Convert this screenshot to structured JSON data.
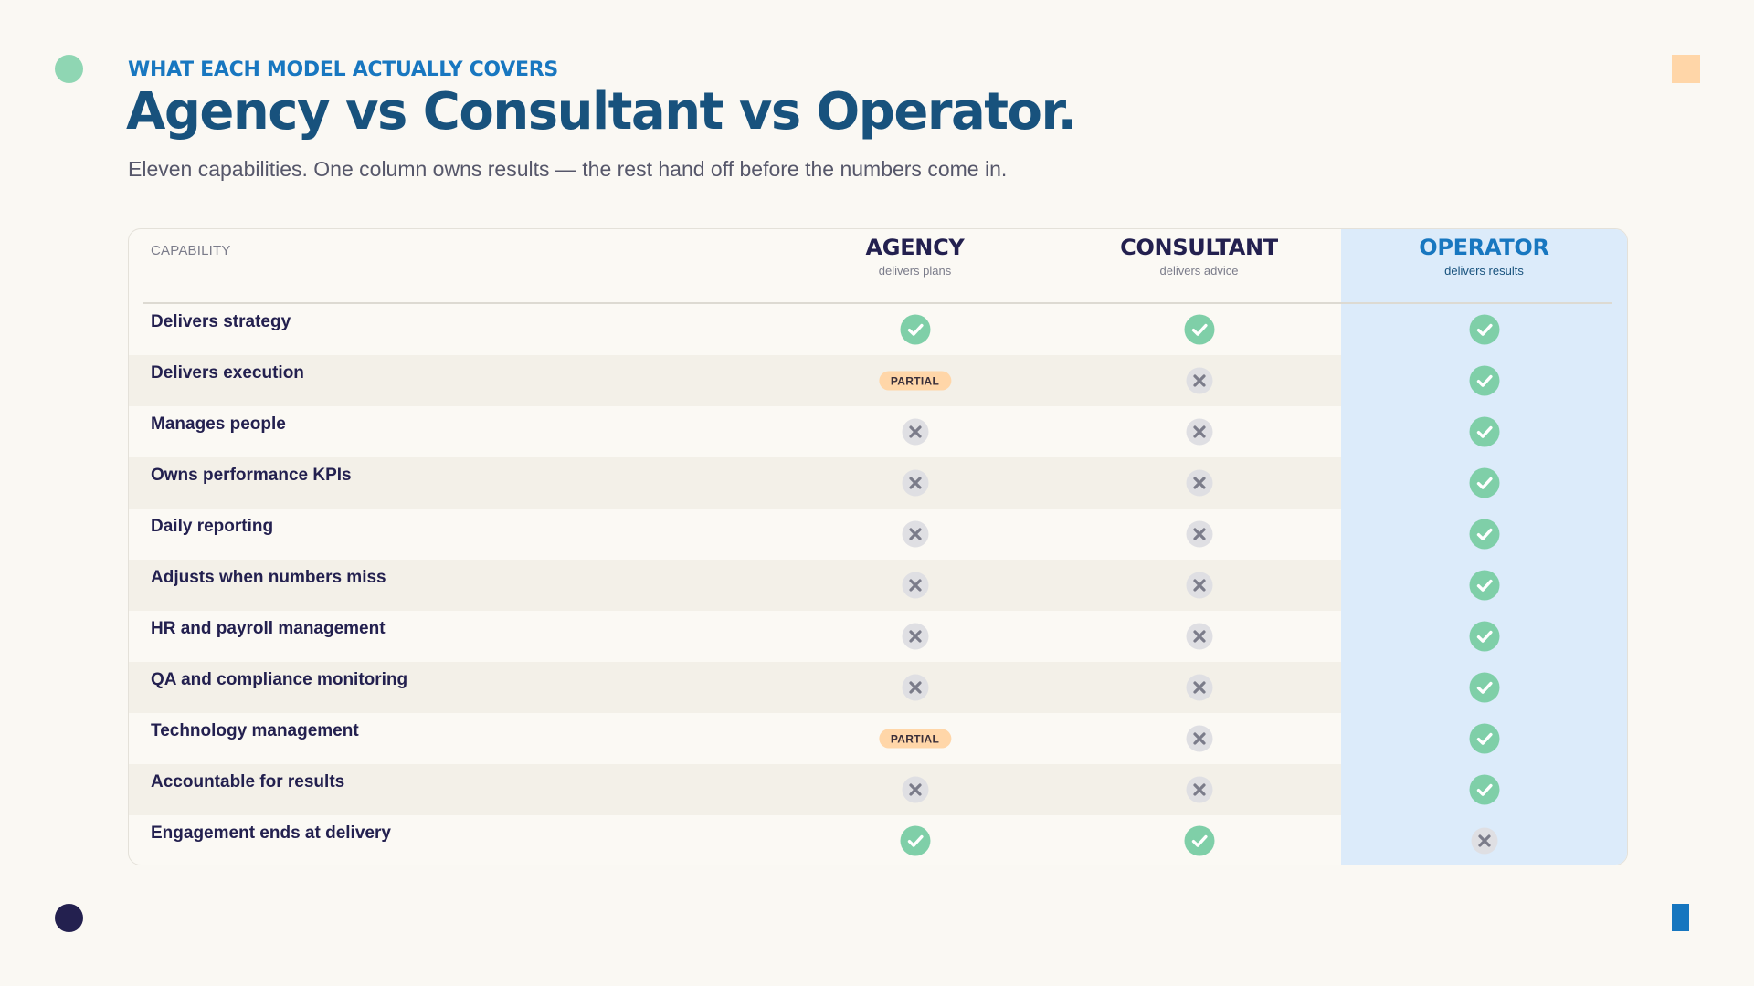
{
  "header": {
    "eyebrow": "WHAT EACH MODEL ACTUALLY COVERS",
    "title": "Agency vs Consultant vs Operator.",
    "subtitle": "Eleven capabilities. One column owns results — the rest hand off before the numbers come in."
  },
  "table": {
    "capability_header": "CAPABILITY",
    "columns": [
      {
        "key": "agency",
        "name": "AGENCY",
        "tagline": "delivers plans"
      },
      {
        "key": "consultant",
        "name": "CONSULTANT",
        "tagline": "delivers advice"
      },
      {
        "key": "operator",
        "name": "OPERATOR",
        "tagline": "delivers results",
        "highlighted": true
      }
    ],
    "partial_label": "PARTIAL",
    "rows": [
      {
        "capability": "Delivers strategy",
        "values": [
          "yes",
          "yes",
          "yes"
        ]
      },
      {
        "capability": "Delivers execution",
        "values": [
          "partial",
          "no",
          "yes"
        ]
      },
      {
        "capability": "Manages people",
        "values": [
          "no",
          "no",
          "yes"
        ]
      },
      {
        "capability": "Owns performance KPIs",
        "values": [
          "no",
          "no",
          "yes"
        ]
      },
      {
        "capability": "Daily reporting",
        "values": [
          "no",
          "no",
          "yes"
        ]
      },
      {
        "capability": "Adjusts when numbers miss",
        "values": [
          "no",
          "no",
          "yes"
        ]
      },
      {
        "capability": "HR and payroll management",
        "values": [
          "no",
          "no",
          "yes"
        ]
      },
      {
        "capability": "QA and compliance monitoring",
        "values": [
          "no",
          "no",
          "yes"
        ]
      },
      {
        "capability": "Technology management",
        "values": [
          "partial",
          "no",
          "yes"
        ]
      },
      {
        "capability": "Accountable for results",
        "values": [
          "no",
          "no",
          "yes"
        ]
      },
      {
        "capability": "Engagement ends at delivery",
        "values": [
          "yes",
          "yes",
          "no"
        ]
      }
    ]
  },
  "colors": {
    "accent_blue": "#1877c0",
    "title_navy": "#18527d",
    "check_green": "#7fcfa8",
    "partial_peach": "#ffd6a8",
    "operator_highlight": "#dcebfa"
  },
  "icons": {
    "yes": "check-icon",
    "no": "cross-icon",
    "partial": "partial-badge"
  }
}
